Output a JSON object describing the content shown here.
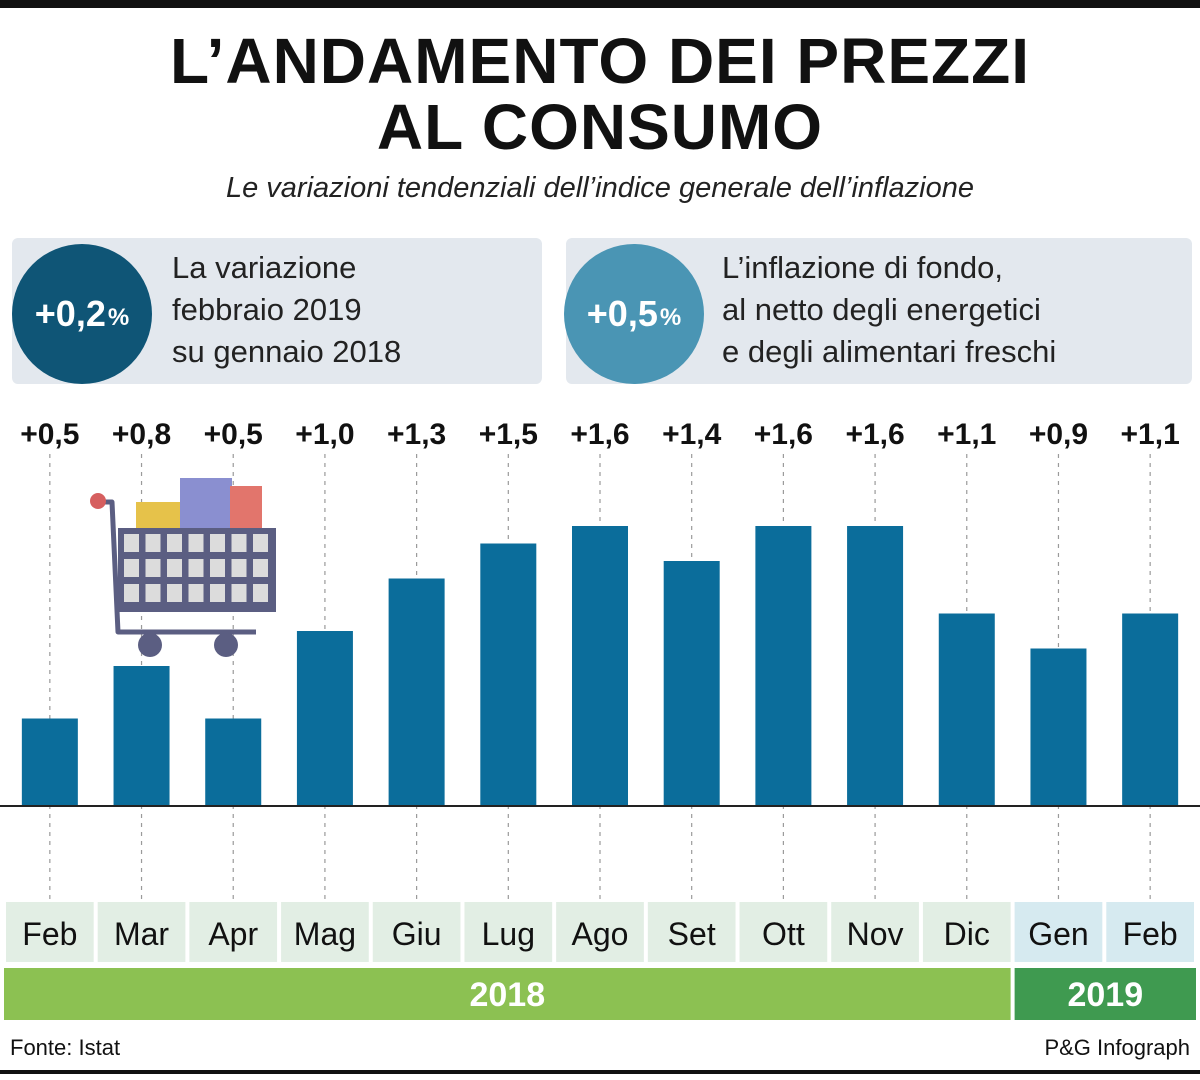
{
  "title": {
    "line1": "L’ANDAMENTO DEI PREZZI",
    "line2": "AL CONSUMO"
  },
  "subtitle": "Le variazioni tendenziali dell’indice generale dell’inflazione",
  "info_boxes": [
    {
      "value": "+0,2",
      "unit": "%",
      "lines": [
        "La variazione",
        "febbraio 2019",
        "su gennaio 2018"
      ],
      "color": "#0f5576"
    },
    {
      "value": "+0,5",
      "unit": "%",
      "lines": [
        "L’inflazione di fondo,",
        "al netto degli energetici",
        "e degli alimentari freschi"
      ],
      "color": "#4a95b4"
    }
  ],
  "chart_data": {
    "type": "bar",
    "categories": [
      "Feb",
      "Mar",
      "Apr",
      "Mag",
      "Giu",
      "Lug",
      "Ago",
      "Set",
      "Ott",
      "Nov",
      "Dic",
      "Gen",
      "Feb"
    ],
    "values": [
      0.5,
      0.8,
      0.5,
      1.0,
      1.3,
      1.5,
      1.6,
      1.4,
      1.6,
      1.6,
      1.1,
      0.9,
      1.1
    ],
    "data_labels": [
      "+0,5",
      "+0,8",
      "+0,5",
      "+1,0",
      "+1,3",
      "+1,5",
      "+1,6",
      "+1,4",
      "+1,6",
      "+1,6",
      "+1,1",
      "+0,9",
      "+1,1"
    ],
    "years": [
      {
        "label": "2018",
        "months": 11,
        "color": "#8cc152"
      },
      {
        "label": "2019",
        "months": 2,
        "color": "#3f9a50"
      }
    ],
    "ylim": [
      0,
      1.6
    ],
    "bar_color": "#0b6d9b",
    "month_bg_2018": "#e2eee4",
    "month_bg_2019": "#d6eaf0"
  },
  "icon": "shopping-cart-icon",
  "footer": {
    "source": "Fonte: Istat",
    "credit": "P&G Infograph"
  }
}
